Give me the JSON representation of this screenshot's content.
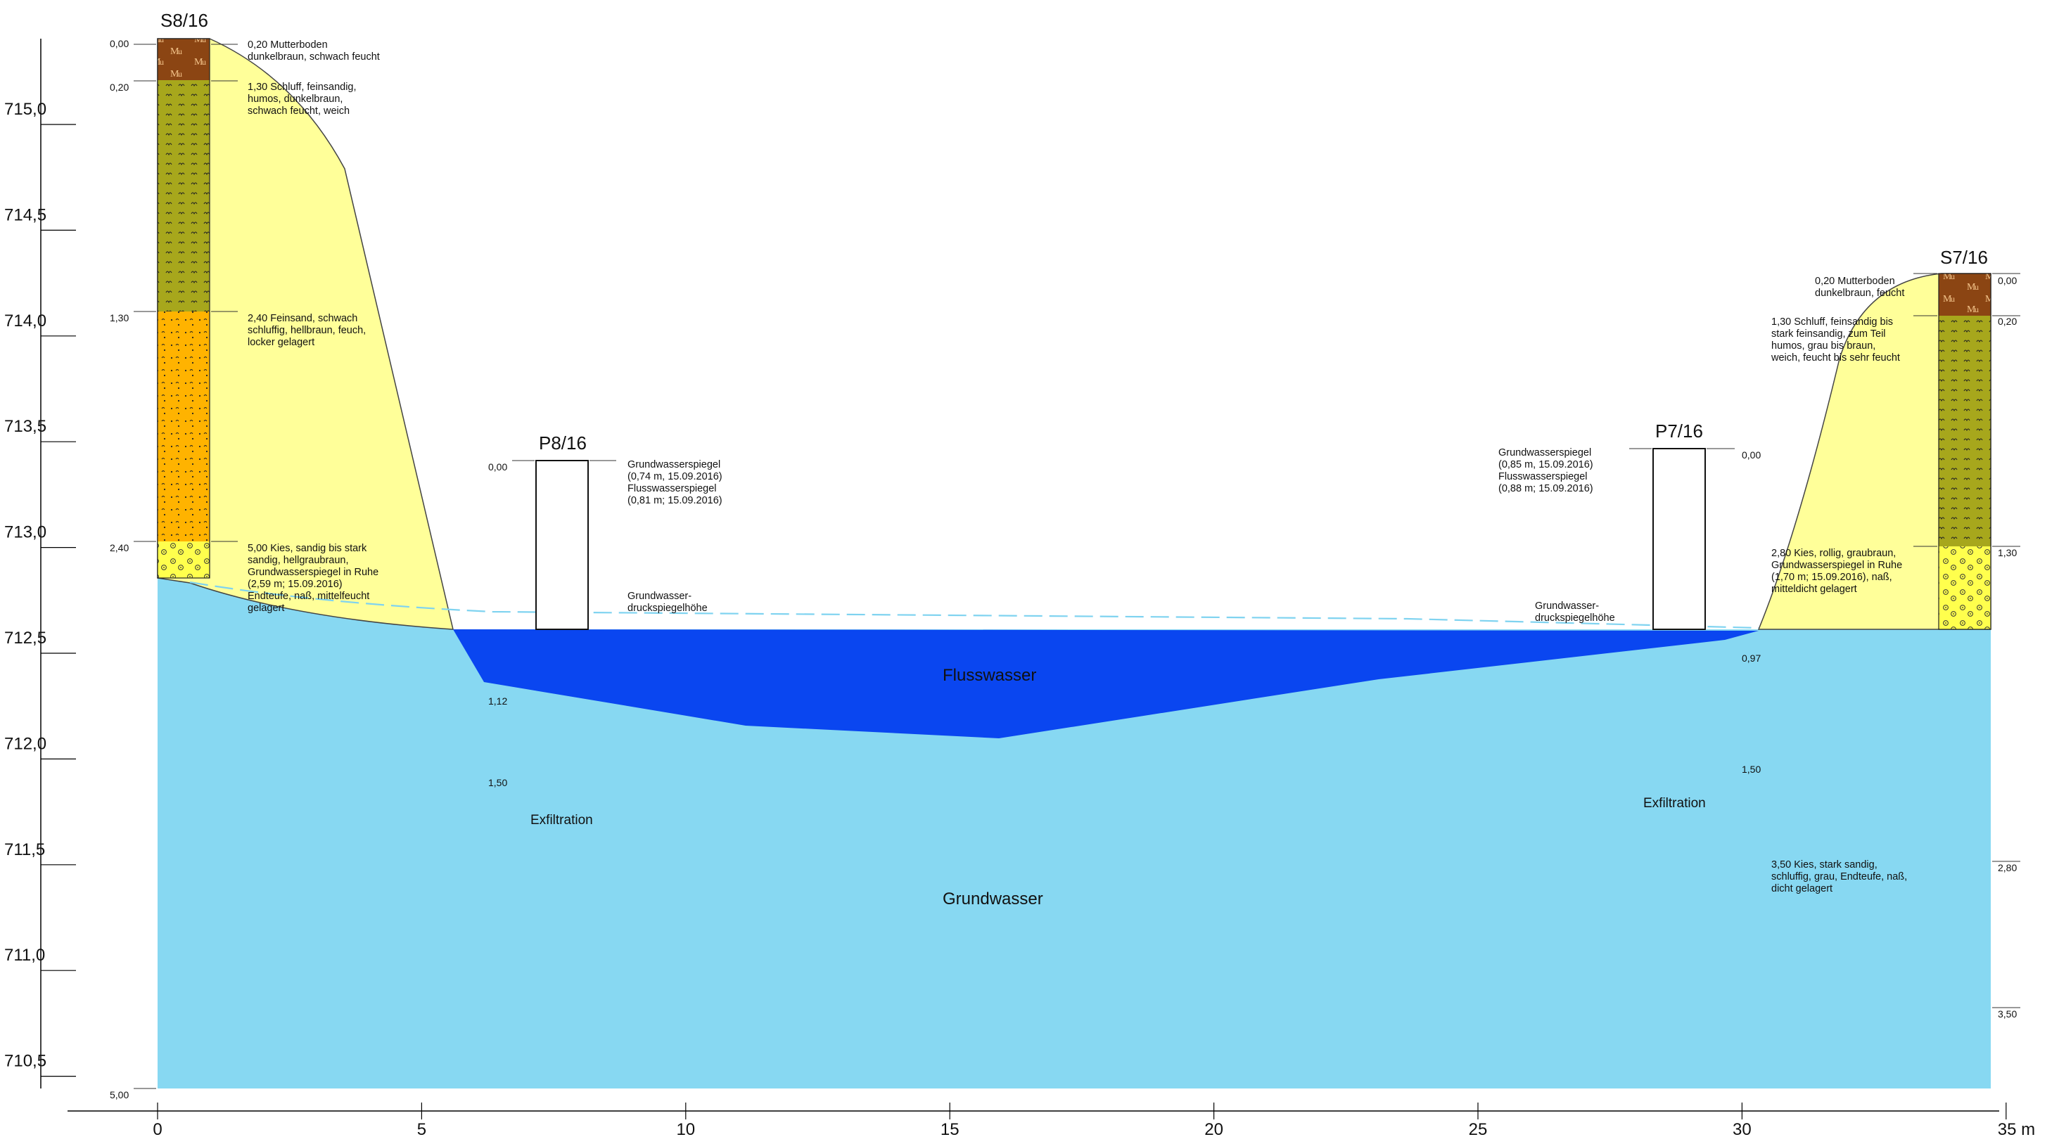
{
  "colors": {
    "groundwater": "#87d8f2",
    "river": "#0a46f0",
    "embankment": "#ffff99",
    "mutterboden": "#8b4513",
    "schluff": "#a7a71c",
    "feinsand": "#ffb300",
    "kies": "#ffff4d",
    "watertable_line": "#7fd3f0"
  },
  "axes": {
    "x_ticks": [
      "0",
      "5",
      "10",
      "15",
      "20",
      "25",
      "30",
      "35 m"
    ],
    "y_ticks": [
      "715,0",
      "714,5",
      "714,0",
      "713,5",
      "713,0",
      "712,5",
      "712,0",
      "711,5",
      "711,0",
      "710,5"
    ]
  },
  "boreholes": {
    "s8": {
      "name": "S8/16",
      "depths": [
        "0,00",
        "0,20",
        "1,30",
        "2,40",
        "5,00"
      ],
      "layers": [
        "0,20 Mutterboden\ndunkelbraun, schwach feucht",
        "1,30 Schluff, feinsandig,\nhumos, dunkelbraun,\nschwach feucht, weich",
        "2,40 Feinsand, schwach\nschluffig, hellbraun, feuch,\nlocker gelagert",
        "5,00 Kies, sandig bis stark\nsandig, hellgraubraun,\nGrundwasserspiegel in Ruhe\n(2,59 m; 15.09.2016)\nEndteufe, naß, mittelfeucht\ngelagert"
      ],
      "soil_symbol": "Mu"
    },
    "s7": {
      "name": "S7/16",
      "depths": [
        "0,00",
        "0,20",
        "1,30",
        "2,80",
        "3,50"
      ],
      "layers": [
        "0,20 Mutterboden\ndunkelbraun, feucht",
        "1,30 Schluff, feinsandig bis\nstark feinsandig, zum Teil\nhumos, grau bis braun,\nweich, feucht bis sehr feucht",
        "2,80 Kies, rollig, graubraun,\nGrundwasserspiegel in Ruhe\n(1,70 m; 15.09.2016), naß,\nmitteldicht gelagert",
        "3,50 Kies, stark sandig,\nschluffig, grau, Endteufe, naß,\ndicht gelagert"
      ],
      "soil_symbol": "Mu"
    }
  },
  "piezometers": {
    "p8": {
      "name": "P8/16",
      "top_depth": "0,00",
      "note": "Grundwasserspiegel\n(0,74 m, 15.09.2016)\nFlusswasserspiegel\n(0,81 m; 15.09.2016)",
      "pressure_label": "Grundwasser-\ndruckspiegelhöhe",
      "depth_labels": [
        "1,12",
        "1,50"
      ]
    },
    "p7": {
      "name": "P7/16",
      "top_depth": "0,00",
      "note": "Grundwasserspiegel\n(0,85 m, 15.09.2016)\nFlusswasserspiegel\n(0,88 m; 15.09.2016)",
      "pressure_label": "Grundwasser-\ndruckspiegelhöhe",
      "depth_labels": [
        "0,97",
        "1,50"
      ]
    }
  },
  "regions": {
    "river": "Flusswasser",
    "groundwater": "Grundwasser",
    "exfiltration": "Exfiltration"
  }
}
